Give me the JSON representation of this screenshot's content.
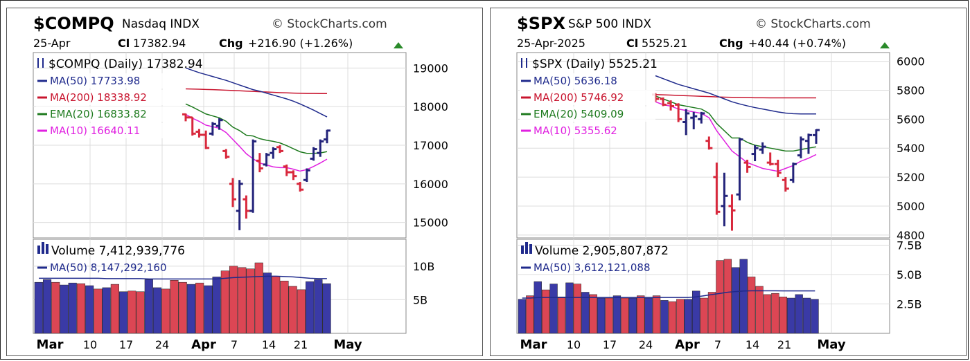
{
  "chart_data": [
    {
      "type": "ohlc",
      "symbol": "$COMPQ",
      "name": "Nasdaq",
      "exchange": "INDX",
      "watermark": "StockCharts.com",
      "date": "25-Apr",
      "close_label": "Cl",
      "close": "17382.94",
      "chg_label": "Chg",
      "change": "+216.90 (+1.26%)",
      "legend_title": "$COMPQ (Daily) 17382.94",
      "indicators": [
        {
          "label": "MA(50) 17733.98",
          "color": "#1f2a8c"
        },
        {
          "label": "MA(200) 18338.92",
          "color": "#c8142e"
        },
        {
          "label": "EMA(20) 16833.82",
          "color": "#1e7a1e"
        },
        {
          "label": "MA(10) 16640.11",
          "color": "#e020e0"
        }
      ],
      "ylim": [
        14600,
        19400
      ],
      "yticks": [
        "19000",
        "18000",
        "17000",
        "16000",
        "15000"
      ],
      "ytick_values": [
        19000,
        18000,
        17000,
        16000,
        15000
      ],
      "ohlc": [
        [
          17800,
          17820,
          17620,
          17720
        ],
        [
          17720,
          17730,
          17250,
          17300
        ],
        [
          17350,
          17420,
          17200,
          17270
        ],
        [
          17270,
          17380,
          16900,
          16930
        ],
        [
          17300,
          17600,
          17250,
          17550
        ],
        [
          17500,
          17700,
          17400,
          17650
        ],
        [
          16850,
          16900,
          16650,
          16700
        ],
        [
          16000,
          16150,
          15400,
          15600
        ],
        [
          15300,
          16100,
          14800,
          16000
        ],
        [
          15600,
          15700,
          15100,
          15300
        ],
        [
          15300,
          17150,
          15250,
          17100
        ],
        [
          16600,
          16800,
          16300,
          16400
        ],
        [
          16500,
          16800,
          16450,
          16750
        ],
        [
          16800,
          16950,
          16650,
          16900
        ],
        [
          16950,
          17000,
          16800,
          16850
        ],
        [
          16450,
          16500,
          16200,
          16300
        ],
        [
          16300,
          16350,
          16100,
          16200
        ],
        [
          16000,
          16050,
          15800,
          15850
        ],
        [
          16100,
          16400,
          16050,
          16350
        ],
        [
          16650,
          16950,
          16600,
          16900
        ],
        [
          16800,
          17150,
          16700,
          17100
        ],
        [
          17150,
          17400,
          17050,
          17380
        ]
      ],
      "ma50": [
        19000,
        18940,
        18880,
        18830,
        18780,
        18730,
        18680,
        18620,
        18560,
        18500,
        18440,
        18400,
        18350,
        18300,
        18250,
        18200,
        18140,
        18070,
        17990,
        17910,
        17820,
        17734
      ],
      "ma200": [
        18460,
        18455,
        18450,
        18445,
        18440,
        18432,
        18425,
        18418,
        18410,
        18402,
        18394,
        18386,
        18378,
        18370,
        18362,
        18356,
        18350,
        18346,
        18342,
        18340,
        18339,
        18339
      ],
      "ema20": [
        18070,
        17990,
        17900,
        17810,
        17760,
        17710,
        17620,
        17470,
        17380,
        17260,
        17240,
        17170,
        17130,
        17100,
        17060,
        16990,
        16910,
        16830,
        16790,
        16790,
        16800,
        16834
      ],
      "ma10": [
        17800,
        17700,
        17620,
        17520,
        17480,
        17440,
        17330,
        17150,
        16970,
        16780,
        16650,
        16540,
        16490,
        16440,
        16420,
        16420,
        16380,
        16330,
        16370,
        16450,
        16540,
        16640
      ],
      "volume_label": "Volume 7,412,939,776",
      "volume_ma_label": "MA(50) 8,147,292,160",
      "vylim": [
        0,
        14000000000
      ],
      "vyticks": [
        "10B",
        "5B"
      ],
      "vytick_values": [
        10000000000,
        5000000000
      ],
      "volume": [
        7.6,
        8.0,
        7.6,
        7.2,
        7.5,
        7.4,
        7.1,
        6.6,
        6.8,
        7.3,
        6.2,
        6.3,
        6.2,
        8.0,
        6.8,
        6.6,
        7.9,
        7.6,
        7.3,
        7.5,
        7.1,
        8.4,
        9.3,
        10.0,
        9.8,
        9.6,
        10.5,
        9.0,
        8.5,
        7.8,
        7.0,
        6.5,
        7.7,
        8.0,
        7.4
      ],
      "volume_up": [
        true,
        true,
        false,
        true,
        true,
        false,
        true,
        false,
        true,
        false,
        true,
        false,
        false,
        true,
        true,
        false,
        false,
        false,
        true,
        false,
        true,
        true,
        false,
        false,
        false,
        false,
        false,
        true,
        false,
        false,
        false,
        false,
        true,
        true,
        true
      ],
      "volume_ma": [
        8.2,
        8.2,
        8.2,
        8.2,
        8.2,
        8.2,
        8.2,
        8.2,
        8.15,
        8.15,
        8.15,
        8.15,
        8.15,
        8.1,
        8.1,
        8.1,
        8.1,
        8.1,
        8.1,
        8.1,
        8.1,
        8.1,
        8.2,
        8.3,
        8.35,
        8.4,
        8.45,
        8.5,
        8.5,
        8.45,
        8.4,
        8.3,
        8.2,
        8.15,
        8.15
      ],
      "xticks": [
        "Mar",
        "10",
        "17",
        "24",
        "Apr",
        "7",
        "14",
        "21",
        "May"
      ]
    },
    {
      "type": "ohlc",
      "symbol": "$SPX",
      "name": "S&P 500",
      "exchange": "INDX",
      "watermark": "StockCharts.com",
      "date": "25-Apr-2025",
      "close_label": "Cl",
      "close": "5525.21",
      "chg_label": "Chg",
      "change": "+40.44 (+0.74%)",
      "legend_title": "$SPX (Daily) 5525.21",
      "indicators": [
        {
          "label": "MA(50) 5636.18",
          "color": "#1f2a8c"
        },
        {
          "label": "MA(200) 5746.92",
          "color": "#c8142e"
        },
        {
          "label": "EMA(20) 5409.09",
          "color": "#1e7a1e"
        },
        {
          "label": "MA(10) 5355.62",
          "color": "#e020e0"
        }
      ],
      "ylim": [
        4780,
        6060
      ],
      "yticks": [
        "6000",
        "5800",
        "5600",
        "5400",
        "5200",
        "5000",
        "4800"
      ],
      "ytick_values": [
        6000,
        5800,
        5600,
        5400,
        5200,
        5000,
        4800
      ],
      "ohlc": [
        [
          5770,
          5780,
          5720,
          5740
        ],
        [
          5740,
          5750,
          5690,
          5700
        ],
        [
          5710,
          5730,
          5660,
          5690
        ],
        [
          5700,
          5710,
          5580,
          5600
        ],
        [
          5580,
          5670,
          5490,
          5640
        ],
        [
          5610,
          5650,
          5530,
          5620
        ],
        [
          5600,
          5650,
          5570,
          5640
        ],
        [
          5450,
          5480,
          5390,
          5400
        ],
        [
          5200,
          5300,
          4940,
          4960
        ],
        [
          5000,
          5230,
          4860,
          5070
        ],
        [
          5000,
          5080,
          4830,
          4970
        ],
        [
          5080,
          5470,
          5040,
          5460
        ],
        [
          5300,
          5320,
          5230,
          5270
        ],
        [
          5360,
          5420,
          5310,
          5400
        ],
        [
          5390,
          5440,
          5360,
          5410
        ],
        [
          5300,
          5370,
          5280,
          5290
        ],
        [
          5290,
          5320,
          5200,
          5230
        ],
        [
          5180,
          5200,
          5100,
          5120
        ],
        [
          5180,
          5300,
          5160,
          5290
        ],
        [
          5350,
          5480,
          5330,
          5460
        ],
        [
          5450,
          5500,
          5360,
          5490
        ],
        [
          5490,
          5530,
          5430,
          5525
        ]
      ],
      "ma50": [
        5900,
        5880,
        5860,
        5840,
        5825,
        5810,
        5795,
        5780,
        5760,
        5740,
        5720,
        5705,
        5692,
        5680,
        5670,
        5660,
        5650,
        5642,
        5638,
        5636,
        5636,
        5636
      ],
      "ma200": [
        5770,
        5768,
        5766,
        5764,
        5762,
        5760,
        5758,
        5756,
        5754,
        5752,
        5751,
        5750,
        5749,
        5748,
        5748,
        5747,
        5747,
        5747,
        5747,
        5747,
        5747,
        5747
      ],
      "ema20": [
        5760,
        5740,
        5720,
        5700,
        5690,
        5680,
        5670,
        5640,
        5570,
        5520,
        5470,
        5470,
        5440,
        5420,
        5410,
        5400,
        5390,
        5380,
        5380,
        5390,
        5400,
        5409
      ],
      "ma10": [
        5720,
        5700,
        5690,
        5670,
        5660,
        5650,
        5640,
        5610,
        5520,
        5450,
        5380,
        5340,
        5300,
        5280,
        5260,
        5250,
        5240,
        5260,
        5280,
        5310,
        5330,
        5356
      ],
      "volume_label": "Volume 2,905,807,872",
      "volume_ma_label": "MA(50) 3,612,121,088",
      "vylim": [
        0,
        8000000000
      ],
      "vyticks": [
        "7.5B",
        "5.0B",
        "2.5B"
      ],
      "vytick_values": [
        7500000000,
        5000000000,
        2500000000
      ],
      "volume": [
        2.9,
        3.2,
        4.4,
        3.7,
        4.2,
        3.1,
        4.3,
        4.2,
        3.5,
        3.3,
        3.0,
        3.0,
        3.2,
        3.0,
        3.0,
        3.2,
        3.0,
        3.2,
        2.8,
        2.7,
        2.9,
        2.9,
        3.6,
        3.0,
        3.5,
        6.2,
        6.3,
        5.6,
        6.3,
        4.8,
        4.0,
        3.3,
        3.4,
        3.1,
        3.0,
        3.3,
        3.0,
        2.9
      ],
      "volume_up": [
        true,
        false,
        true,
        false,
        true,
        false,
        true,
        false,
        true,
        false,
        true,
        false,
        true,
        false,
        true,
        false,
        true,
        false,
        true,
        false,
        false,
        true,
        true,
        false,
        false,
        false,
        false,
        true,
        true,
        false,
        false,
        false,
        false,
        false,
        true,
        true,
        true,
        true
      ],
      "volume_ma": [
        3.0,
        3.0,
        3.05,
        3.05,
        3.05,
        3.05,
        3.05,
        3.05,
        3.05,
        3.05,
        3.05,
        3.05,
        3.05,
        3.05,
        3.05,
        3.05,
        3.05,
        3.05,
        3.05,
        3.05,
        3.05,
        3.05,
        3.1,
        3.2,
        3.3,
        3.4,
        3.5,
        3.55,
        3.6,
        3.62,
        3.62,
        3.62,
        3.62,
        3.61,
        3.61,
        3.61,
        3.61,
        3.61
      ],
      "xticks": [
        "Mar",
        "10",
        "17",
        "24",
        "Apr",
        "7",
        "14",
        "21",
        "May"
      ]
    }
  ]
}
